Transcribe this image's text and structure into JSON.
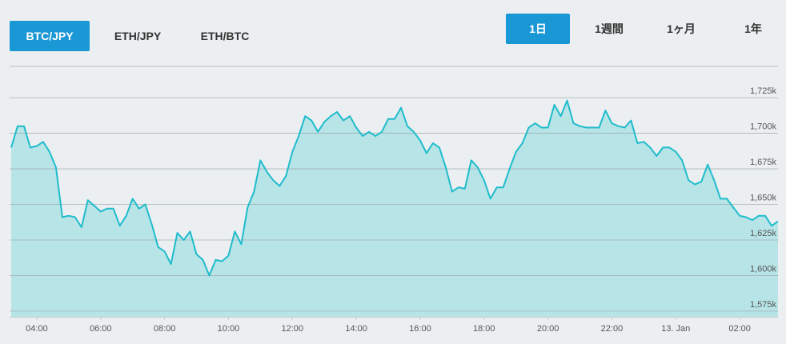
{
  "pair_tabs": [
    "BTC/JPY",
    "ETH/JPY",
    "ETH/BTC"
  ],
  "range_tabs": [
    "1日",
    "1週間",
    "1ヶ月",
    "1年"
  ],
  "chart_data": {
    "type": "area",
    "color": "#1fbccb",
    "fill_color": "#b7e4e7",
    "grid": true,
    "xlim": [
      3.15,
      27.2
    ],
    "ylim": [
      1571000,
      1747000
    ],
    "xticks": [
      {
        "value": 4,
        "label": "04:00"
      },
      {
        "value": 6,
        "label": "06:00"
      },
      {
        "value": 8,
        "label": "08:00"
      },
      {
        "value": 10,
        "label": "10:00"
      },
      {
        "value": 12,
        "label": "12:00"
      },
      {
        "value": 14,
        "label": "14:00"
      },
      {
        "value": 16,
        "label": "16:00"
      },
      {
        "value": 18,
        "label": "18:00"
      },
      {
        "value": 20,
        "label": "20:00"
      },
      {
        "value": 22,
        "label": "22:00"
      },
      {
        "value": 24,
        "label": "13. Jan"
      },
      {
        "value": 26,
        "label": "02:00"
      }
    ],
    "yticks": [
      {
        "value": 1575000,
        "label": "1,575k"
      },
      {
        "value": 1600000,
        "label": "1,600k"
      },
      {
        "value": 1625000,
        "label": "1,625k"
      },
      {
        "value": 1650000,
        "label": "1,650k"
      },
      {
        "value": 1675000,
        "label": "1,675k"
      },
      {
        "value": 1700000,
        "label": "1,700k"
      },
      {
        "value": 1725000,
        "label": "1,725k"
      }
    ],
    "x": [
      3.2,
      3.4,
      3.6,
      3.8,
      4.0,
      4.2,
      4.4,
      4.6,
      4.8,
      5.0,
      5.2,
      5.4,
      5.6,
      5.8,
      6.0,
      6.2,
      6.4,
      6.6,
      6.8,
      7.0,
      7.2,
      7.4,
      7.6,
      7.8,
      8.0,
      8.2,
      8.4,
      8.6,
      8.8,
      9.0,
      9.2,
      9.4,
      9.6,
      9.8,
      10.0,
      10.2,
      10.4,
      10.6,
      10.8,
      11.0,
      11.2,
      11.4,
      11.6,
      11.8,
      12.0,
      12.2,
      12.4,
      12.6,
      12.8,
      13.0,
      13.2,
      13.4,
      13.6,
      13.8,
      14.0,
      14.2,
      14.4,
      14.6,
      14.8,
      15.0,
      15.2,
      15.4,
      15.6,
      15.8,
      16.0,
      16.2,
      16.4,
      16.6,
      16.8,
      17.0,
      17.2,
      17.4,
      17.6,
      17.8,
      18.0,
      18.2,
      18.4,
      18.6,
      18.8,
      19.0,
      19.2,
      19.4,
      19.6,
      19.8,
      20.0,
      20.2,
      20.4,
      20.6,
      20.8,
      21.0,
      21.2,
      21.4,
      21.6,
      21.8,
      22.0,
      22.2,
      22.4,
      22.6,
      22.8,
      23.0,
      23.2,
      23.4,
      23.6,
      23.8,
      24.0,
      24.2,
      24.4,
      24.6,
      24.8,
      25.0,
      25.2,
      25.4,
      25.6,
      25.8,
      26.0,
      26.2,
      26.4,
      26.6,
      26.8,
      27.0,
      27.2
    ],
    "values": [
      1690000,
      1705000,
      1705000,
      1690000,
      1691000,
      1694000,
      1687000,
      1676000,
      1641000,
      1642000,
      1641000,
      1634000,
      1653000,
      1649000,
      1645000,
      1647000,
      1647000,
      1635000,
      1642000,
      1654000,
      1647000,
      1650000,
      1636000,
      1620000,
      1617000,
      1608000,
      1630000,
      1625000,
      1631000,
      1615000,
      1611000,
      1600000,
      1611000,
      1610000,
      1614000,
      1631000,
      1622000,
      1648000,
      1659000,
      1681000,
      1673000,
      1667000,
      1663000,
      1670000,
      1687000,
      1698000,
      1712000,
      1709000,
      1701000,
      1708000,
      1712000,
      1715000,
      1709000,
      1712000,
      1704000,
      1698000,
      1701000,
      1698000,
      1701000,
      1710000,
      1710000,
      1718000,
      1705000,
      1701000,
      1695000,
      1686000,
      1693000,
      1690000,
      1676000,
      1659000,
      1662000,
      1661000,
      1681000,
      1676000,
      1667000,
      1654000,
      1662000,
      1662000,
      1675000,
      1687000,
      1693000,
      1704000,
      1707000,
      1704000,
      1704000,
      1720000,
      1712000,
      1723000,
      1707000,
      1705000,
      1704000,
      1704000,
      1704000,
      1716000,
      1707000,
      1705000,
      1704000,
      1709000,
      1693000,
      1694000,
      1690000,
      1684000,
      1690000,
      1690000,
      1687000,
      1681000,
      1667000,
      1664000,
      1666000,
      1678000,
      1667000,
      1654000,
      1654000,
      1648000,
      1642000,
      1641000,
      1639000,
      1642000,
      1642000,
      1635000,
      1638000
    ]
  }
}
